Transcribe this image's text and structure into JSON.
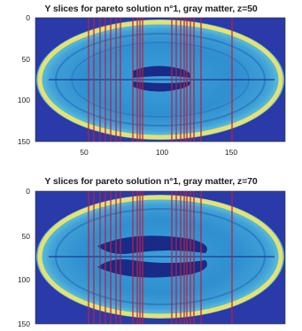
{
  "panels": [
    {
      "title": "Y slices for pareto solution n°1, gray matter, z=50",
      "y_ticks": [
        "0",
        "50",
        "100",
        "150"
      ],
      "x_ticks": [
        "50",
        "100",
        "150"
      ]
    },
    {
      "title": "Y slices for pareto solution n°1, gray matter, z=70",
      "y_ticks": [
        "0",
        "50",
        "100",
        "150"
      ],
      "x_ticks": []
    }
  ],
  "colors": {
    "background_field": "#2a3aa8",
    "tissue": "#2f8fd0",
    "skull_ring": "#e8e070",
    "ventricle": "#1a2a88",
    "slice_line": "#c02040"
  }
}
